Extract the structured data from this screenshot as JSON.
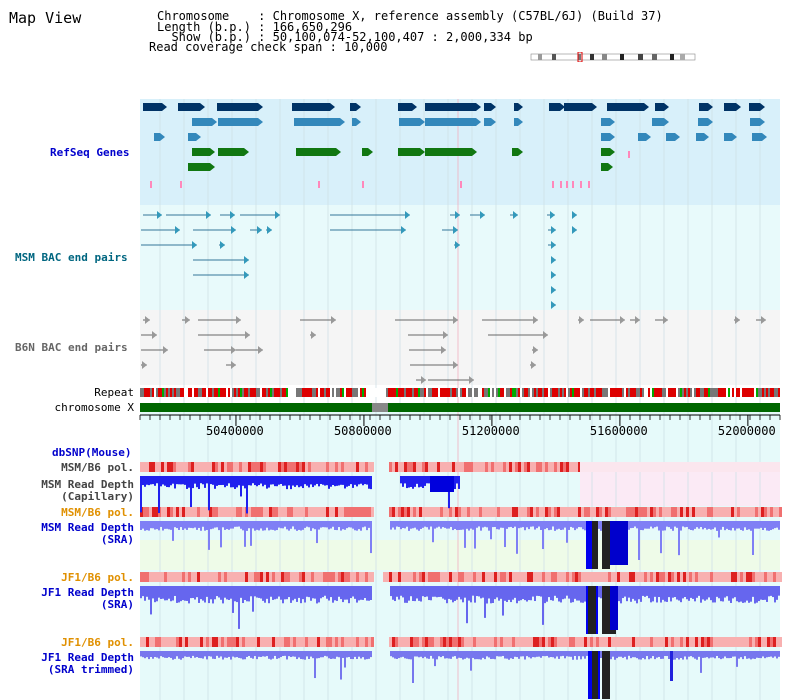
{
  "page_title": "Map View",
  "header": {
    "chromosome_line": "Chromosome    : Chromosome X, reference assembly (C57BL/6J) (Build 37)",
    "length_line": "Length (b.p.) : 166,650,296",
    "show_line": "  Show (b.p.) : 50,100,074-52,100,407 : 2,000,334 bp",
    "coverage_line": "Read coverage check span : 10,000"
  },
  "tracks": {
    "refseq": "RefSeq Genes",
    "msm_bac": "MSM BAC end pairs",
    "b6n_bac": "B6N BAC end pairs",
    "repeat": "Repeat",
    "chromosome": "chromosome X",
    "dbsnp": "dbSNP(Mouse)",
    "msm_pol_1": "MSM/B6 pol.",
    "msm_depth_cap_1": "MSM Read Depth",
    "msm_depth_cap_2": "(Capillary)",
    "msm_pol_2": "MSM/B6 pol.",
    "msm_depth_sra_1": "MSM Read Depth",
    "msm_depth_sra_2": "(SRA)",
    "jf1_pol_1": "JF1/B6 pol.",
    "jf1_depth_sra_1": "JF1 Read Depth",
    "jf1_depth_sra_2": "(SRA)",
    "jf1_pol_2": "JF1/B6 pol.",
    "jf1_depth_trim_1": "JF1 Read Depth",
    "jf1_depth_trim_2": "(SRA trimmed)"
  },
  "axis": {
    "ticks": [
      {
        "value": 50400000,
        "label": "50400000"
      },
      {
        "value": 50800000,
        "label": "50800000"
      },
      {
        "value": 51200000,
        "label": "51200000"
      },
      {
        "value": 51600000,
        "label": "51600000"
      },
      {
        "value": 52000000,
        "label": "52000000"
      }
    ],
    "range": [
      50100074,
      52100407
    ]
  },
  "colors": {
    "refseq_bg": "#d8f0fa",
    "msm_bg": "#e8fafb",
    "b6n_bg": "#f5f5f5",
    "data_bg": "#e6fafa",
    "pink_bg": "#fbeaf5",
    "label_blue": "#0000cc",
    "label_teal": "#006680",
    "label_orange": "#e09000",
    "chromosome_green": "#006600",
    "depth_blue": "#0000ff",
    "depth_light": "#7f7ff5"
  }
}
